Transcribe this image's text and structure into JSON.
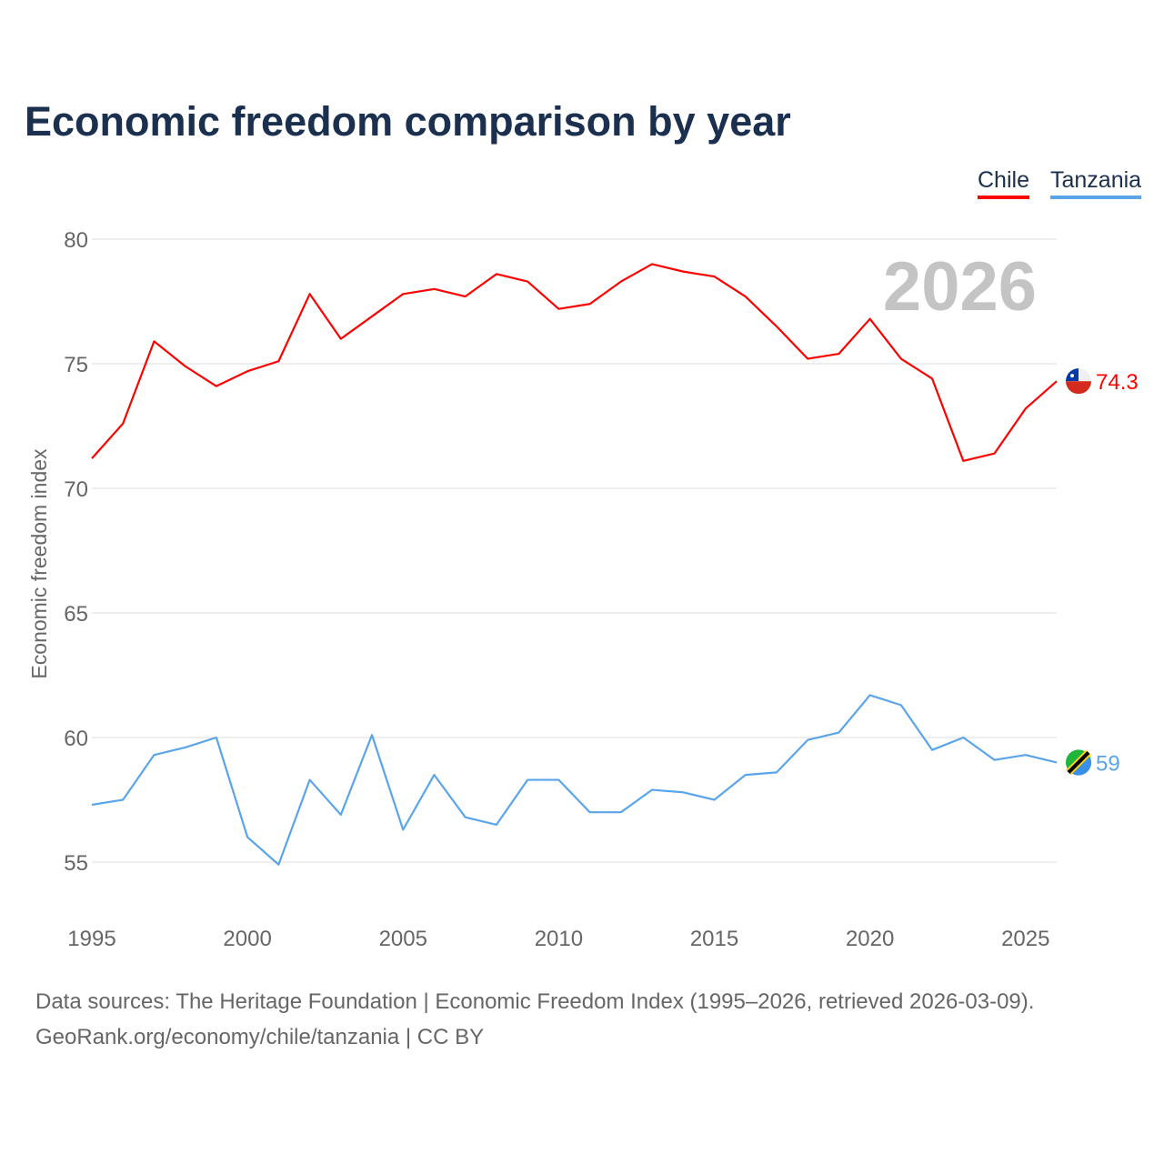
{
  "title": "Economic freedom comparison by year",
  "legend": [
    {
      "name": "Chile",
      "color": "#ff0000"
    },
    {
      "name": "Tanzania",
      "color": "#5aa5ea"
    }
  ],
  "year_label": "2026",
  "source_line1": "Data sources: The Heritage Foundation | Economic Freedom Index (1995–2026, retrieved 2026-03-09).",
  "source_line2": "GeoRank.org/economy/chile/tanzania | CC BY",
  "chart_data": {
    "type": "line",
    "title": "Economic freedom comparison by year",
    "xlabel": "",
    "ylabel": "Economic freedom index",
    "xlim": [
      1995,
      2026
    ],
    "ylim": [
      55,
      80
    ],
    "xticks": [
      1995,
      2000,
      2005,
      2010,
      2015,
      2020,
      2025
    ],
    "yticks": [
      55,
      60,
      65,
      70,
      75,
      80
    ],
    "grid": true,
    "legend_position": "top-right",
    "x": [
      1995,
      1996,
      1997,
      1998,
      1999,
      2000,
      2001,
      2002,
      2003,
      2004,
      2005,
      2006,
      2007,
      2008,
      2009,
      2010,
      2011,
      2012,
      2013,
      2014,
      2015,
      2016,
      2017,
      2018,
      2019,
      2020,
      2021,
      2022,
      2023,
      2024,
      2025,
      2026
    ],
    "series": [
      {
        "name": "Chile",
        "color": "#ff0000",
        "end_label": "74.3",
        "values": [
          71.2,
          72.6,
          75.9,
          74.9,
          74.1,
          74.7,
          75.1,
          77.8,
          76.0,
          76.9,
          77.8,
          78.0,
          77.7,
          78.6,
          78.3,
          77.2,
          77.4,
          78.3,
          79.0,
          78.7,
          78.5,
          77.7,
          76.5,
          75.2,
          75.4,
          76.8,
          75.2,
          74.4,
          71.1,
          71.4,
          73.2,
          74.3
        ]
      },
      {
        "name": "Tanzania",
        "color": "#5aa5ea",
        "end_label": "59",
        "values": [
          57.3,
          57.5,
          59.3,
          59.6,
          60.0,
          56.0,
          54.9,
          58.3,
          56.9,
          60.1,
          56.3,
          58.5,
          56.8,
          56.5,
          58.3,
          58.3,
          57.0,
          57.0,
          57.9,
          57.8,
          57.5,
          58.5,
          58.6,
          59.9,
          60.2,
          61.7,
          61.3,
          59.5,
          60.0,
          59.1,
          59.3,
          59.0
        ]
      }
    ]
  }
}
